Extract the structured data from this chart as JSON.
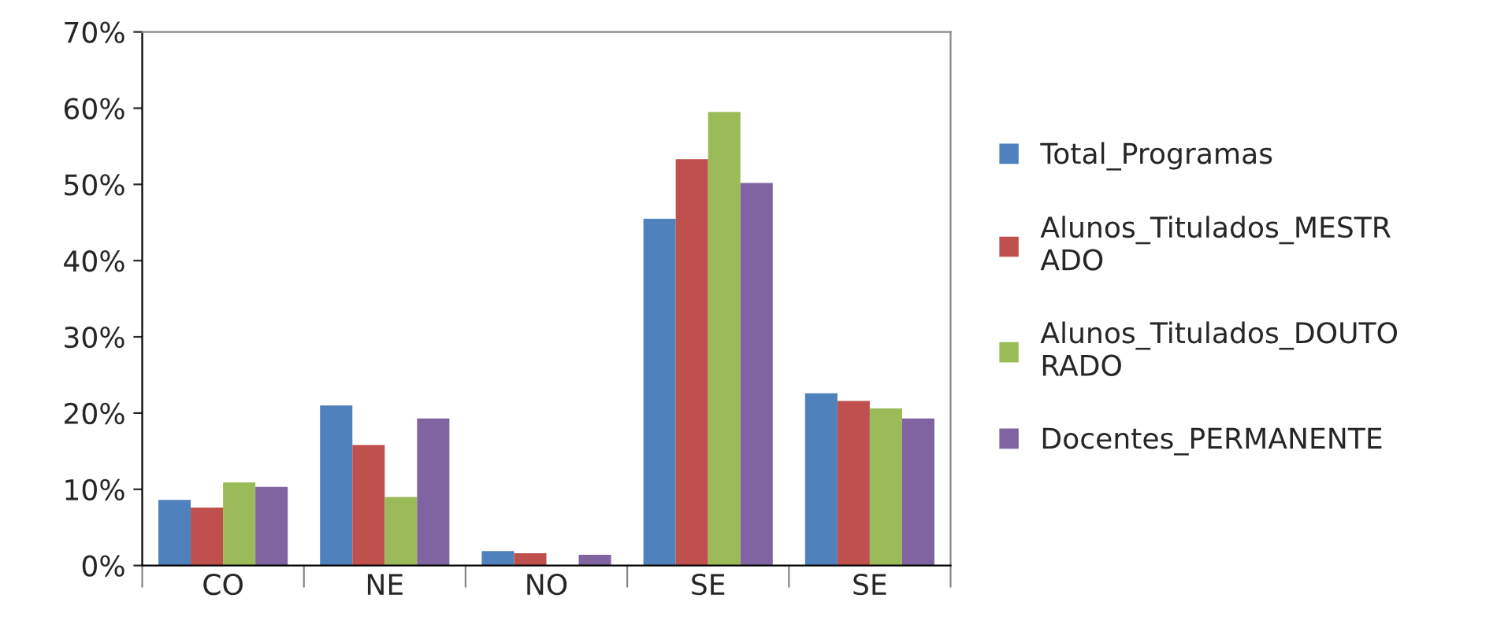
{
  "chart_data": {
    "type": "bar",
    "categories": [
      "CO",
      "NE",
      "NO",
      "SE",
      "SE"
    ],
    "series": [
      {
        "name": "Total_Programas",
        "color": "#4f81bd",
        "values": [
          8.6,
          21.0,
          1.9,
          45.5,
          22.6
        ]
      },
      {
        "name": "Alunos_Titulados_MESTRADO",
        "color": "#c0504d",
        "values": [
          7.6,
          15.8,
          1.6,
          53.3,
          21.6
        ]
      },
      {
        "name": "Alunos_Titulados_DOUTORADO",
        "color": "#9bbb59",
        "values": [
          10.9,
          9.0,
          0,
          59.5,
          20.6
        ]
      },
      {
        "name": "Docentes_PERMANENTE",
        "color": "#8064a2",
        "values": [
          10.3,
          19.3,
          1.4,
          50.2,
          19.3
        ]
      }
    ],
    "ylim": [
      0,
      70
    ],
    "yticks": [
      {
        "value": 0,
        "label": "0%"
      },
      {
        "value": 10,
        "label": "10%"
      },
      {
        "value": 20,
        "label": "20%"
      },
      {
        "value": 30,
        "label": "30%"
      },
      {
        "value": 40,
        "label": "40%"
      },
      {
        "value": 50,
        "label": "50%"
      },
      {
        "value": 60,
        "label": "60%"
      },
      {
        "value": 70,
        "label": "70%"
      }
    ],
    "legend": "right"
  }
}
